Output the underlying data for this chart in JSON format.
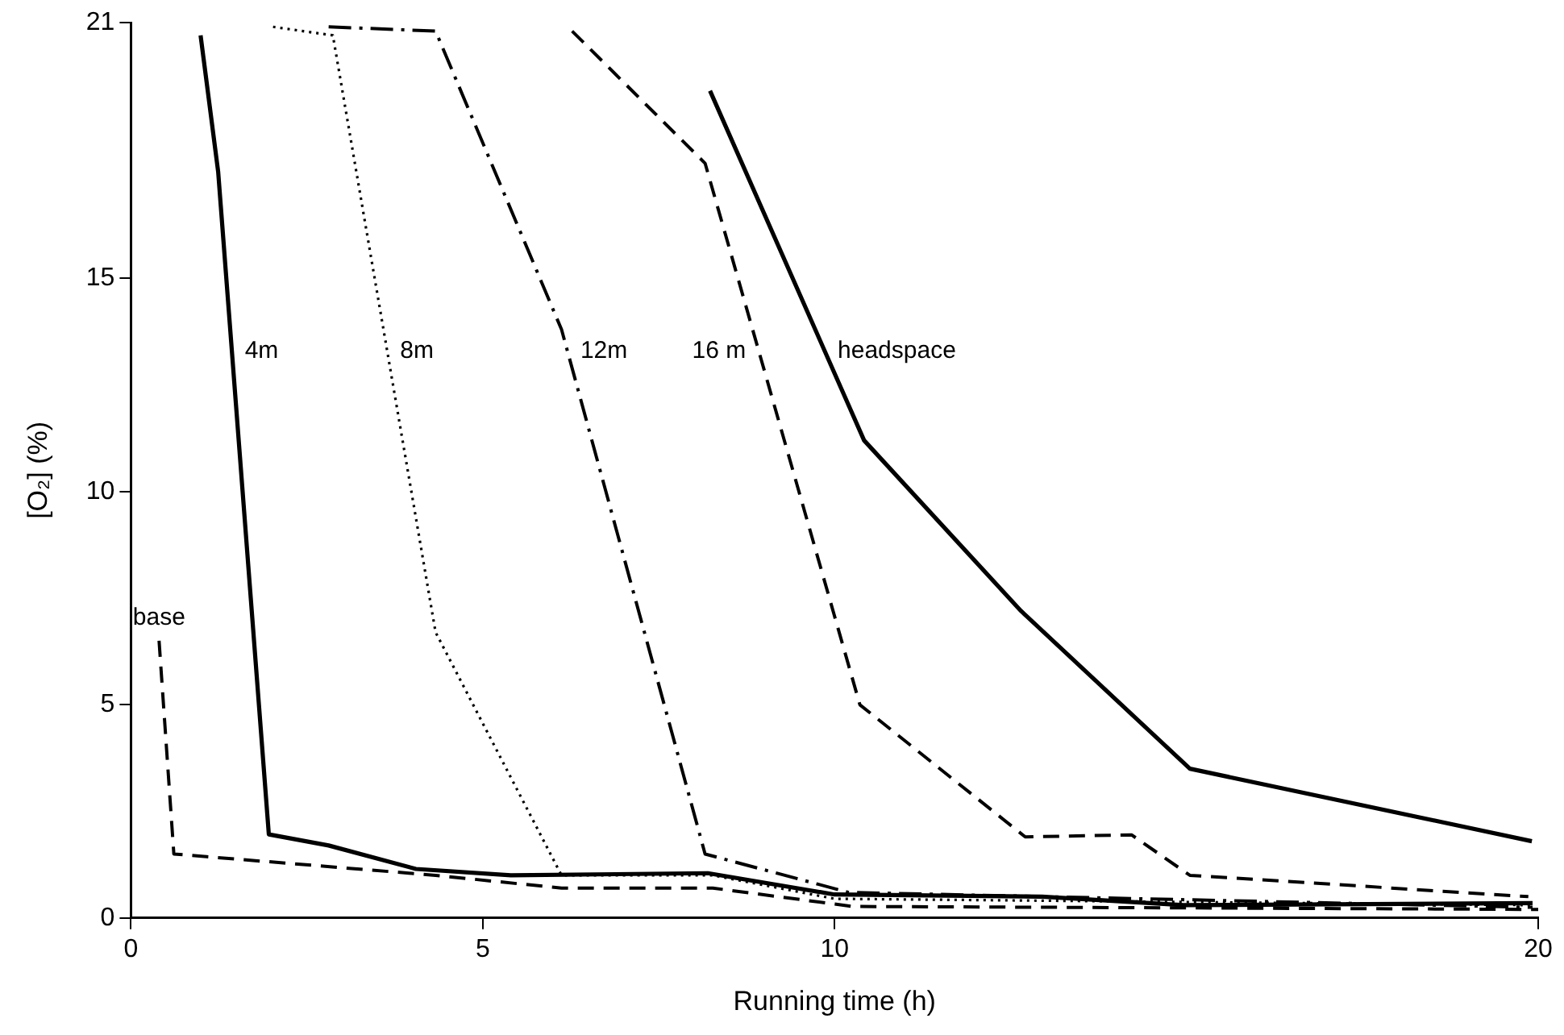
{
  "chart_data": {
    "type": "line",
    "xlabel": "Running time (h)",
    "ylabel": "[O₂] (%)",
    "xlim": [
      0,
      20
    ],
    "xticks": [
      0,
      5,
      10,
      20
    ],
    "ylim": [
      0,
      21
    ],
    "yticks": [
      0,
      5,
      10,
      15,
      21
    ],
    "grid": false,
    "legend": false,
    "marker": "none",
    "series": [
      {
        "name": "base",
        "color": "#000000",
        "line_style": "dashed",
        "x": [
          0.4,
          0.61,
          4.33,
          6.12,
          8.27,
          10.26,
          20
        ],
        "values": [
          6.5,
          1.5,
          1.0,
          0.7,
          0.7,
          0.27,
          0.2
        ]
      },
      {
        "name": "4m",
        "color": "#000000",
        "line_style": "solid",
        "x": [
          0.99,
          1.24,
          1.96,
          2.81,
          4.05,
          5.4,
          8.2,
          10.0,
          12.95,
          14.96,
          19.92
        ],
        "values": [
          20.7,
          17.5,
          1.96,
          1.7,
          1.15,
          1.0,
          1.05,
          0.55,
          0.5,
          0.3,
          0.35
        ]
      },
      {
        "name": "8m",
        "color": "#000000",
        "line_style": "dotted",
        "x": [
          2.02,
          2.87,
          4.33,
          6.12,
          8.27,
          10.0,
          19.92
        ],
        "values": [
          20.9,
          20.7,
          6.7,
          1.0,
          1.0,
          0.45,
          0.3
        ]
      },
      {
        "name": "12m",
        "color": "#000000",
        "line_style": "dashdot",
        "x": [
          2.81,
          4.33,
          6.12,
          8.16,
          10.2,
          19.92
        ],
        "values": [
          20.9,
          20.8,
          13.8,
          1.5,
          0.6,
          0.25
        ]
      },
      {
        "name": "16 m",
        "color": "#000000",
        "line_style": "dashed",
        "x": [
          6.27,
          8.16,
          10.36,
          12.71,
          14.22,
          15.05,
          19.86
        ],
        "values": [
          20.8,
          17.7,
          5.0,
          1.9,
          1.95,
          1.0,
          0.5
        ]
      },
      {
        "name": "headspace",
        "color": "#000000",
        "line_style": "solid",
        "x": [
          8.23,
          10.42,
          12.65,
          15.05,
          19.91
        ],
        "values": [
          19.4,
          11.2,
          7.2,
          3.5,
          1.8
        ]
      }
    ]
  }
}
